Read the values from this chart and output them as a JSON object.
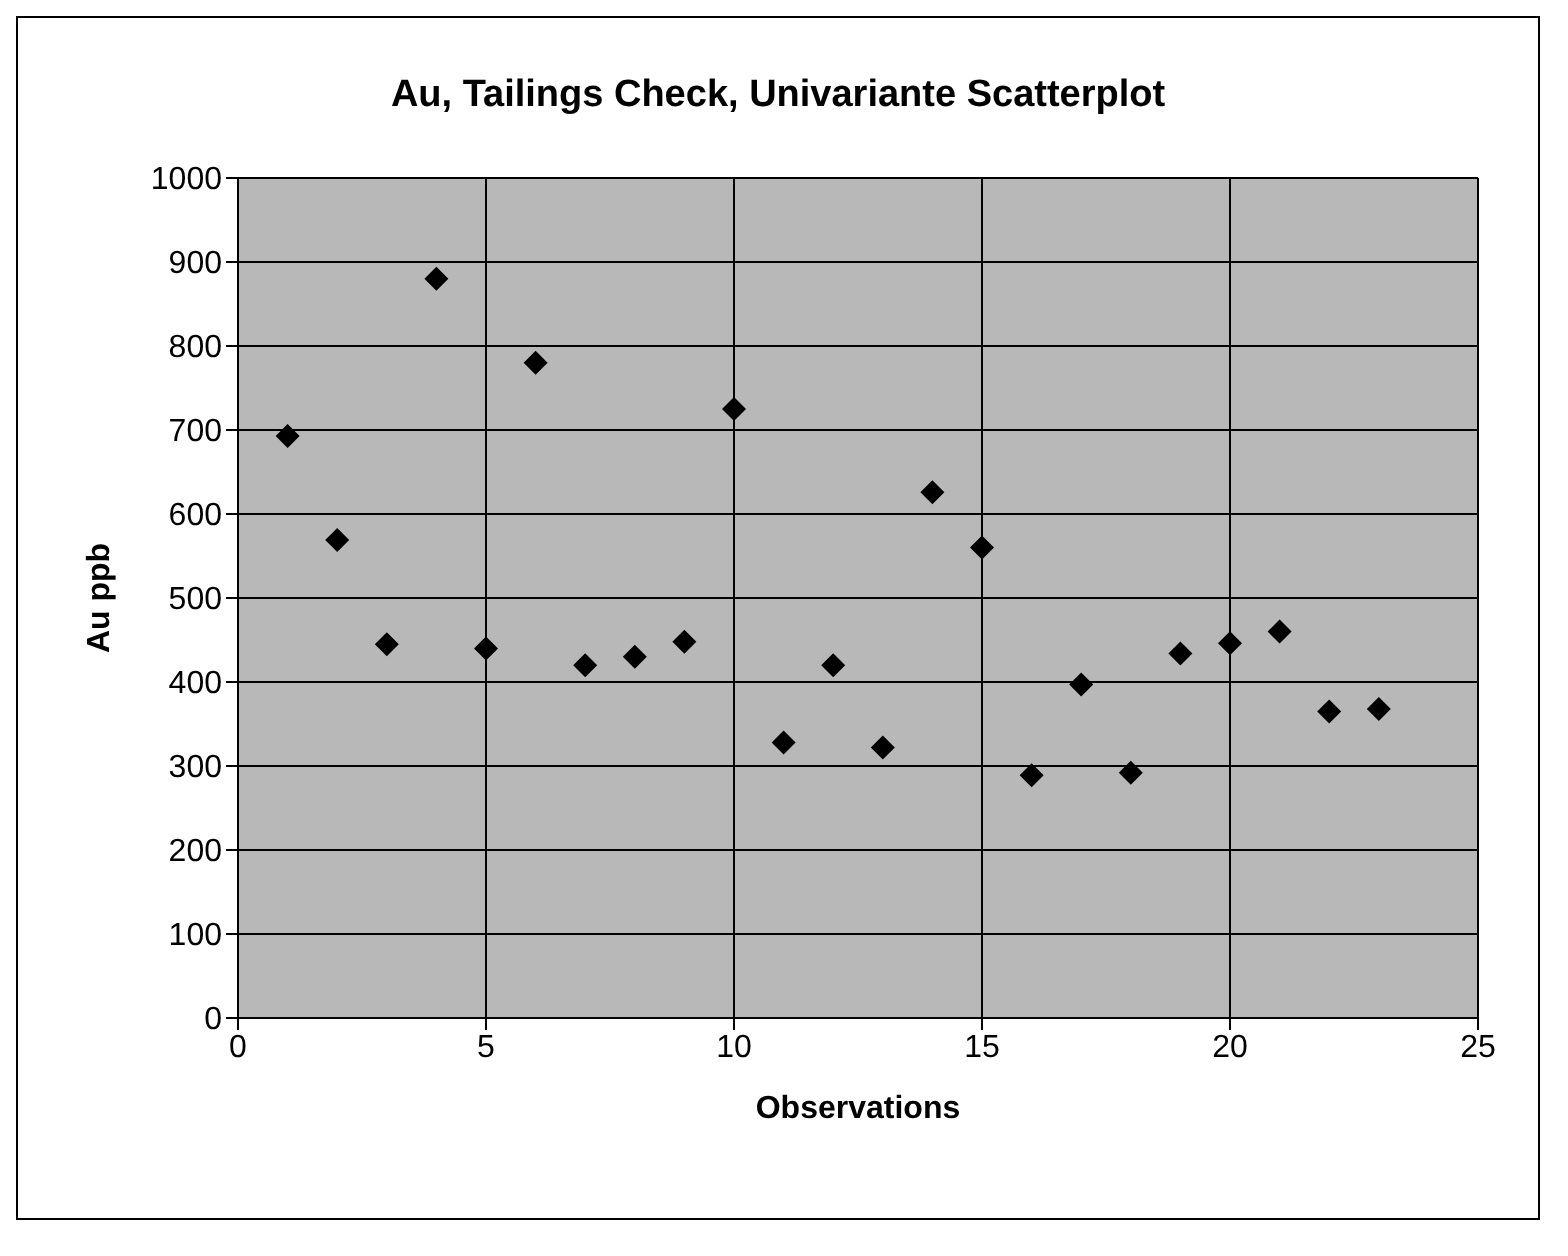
{
  "chart_data": {
    "type": "scatter",
    "title": "Au, Tailings Check, Univariante Scatterplot",
    "xlabel": "Observations",
    "ylabel": "Au ppb",
    "x": [
      1,
      2,
      3,
      4,
      5,
      6,
      7,
      8,
      9,
      10,
      11,
      12,
      13,
      14,
      15,
      16,
      17,
      18,
      19,
      20,
      21,
      22,
      23
    ],
    "values": [
      693,
      569,
      445,
      880,
      440,
      780,
      420,
      430,
      448,
      725,
      328,
      420,
      322,
      626,
      560,
      289,
      397,
      292,
      434,
      446,
      460,
      365,
      368
    ],
    "color": "#000000",
    "marker": "diamond",
    "xlim": [
      0,
      25
    ],
    "xticks": [
      0,
      5,
      10,
      15,
      20,
      25
    ],
    "ylim": [
      0,
      1000
    ],
    "yticks": [
      0,
      100,
      200,
      300,
      400,
      500,
      600,
      700,
      800,
      900,
      1000
    ],
    "grid": true,
    "legend": false
  }
}
